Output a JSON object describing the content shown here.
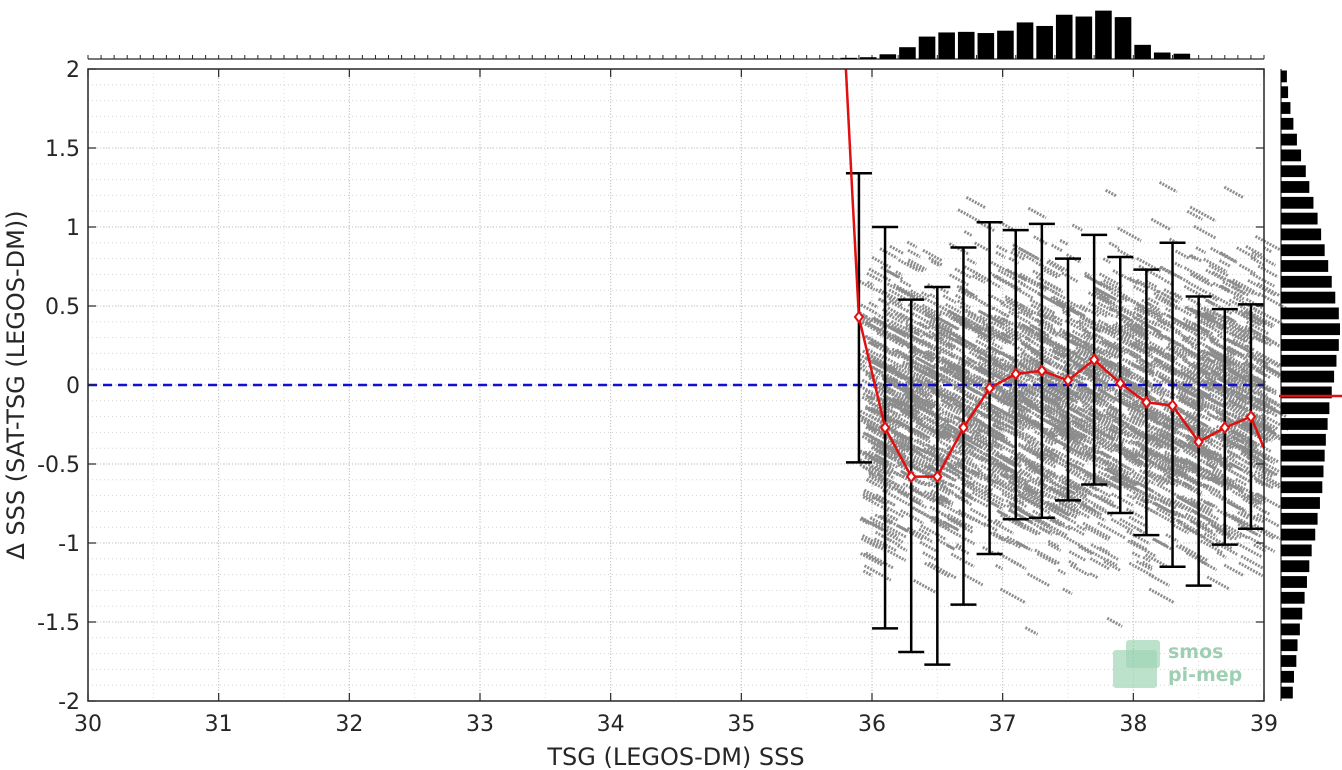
{
  "chart_data": {
    "type": "scatter",
    "title": "",
    "xlabel": "TSG (LEGOS-DM) SSS",
    "ylabel": "Δ SSS (SAT-TSG (LEGOS-DM))",
    "xlim": [
      30,
      39
    ],
    "ylim": [
      -2,
      2
    ],
    "x_ticks": [
      30,
      31,
      32,
      33,
      34,
      35,
      36,
      37,
      38,
      39
    ],
    "y_ticks": [
      -2,
      -1.5,
      -1,
      -0.5,
      0,
      0.5,
      1,
      1.5,
      2
    ],
    "y_tick_labels": [
      "-2",
      "-1.5",
      "-1",
      "-0.5",
      "0",
      "0.5",
      "1",
      "1.5",
      "2"
    ],
    "grid": true,
    "reference_line": {
      "y": 0,
      "style": "dashed",
      "color": "#1010d0"
    },
    "scatter_color": "#8c8c8c",
    "scatter_region": {
      "x_min": 35.9,
      "x_max": 39,
      "center_y": -0.1,
      "spread_y": 0.9
    },
    "binned_mean": {
      "name": "mean",
      "color": "#e01010",
      "x": [
        35.9,
        36.1,
        36.3,
        36.5,
        36.7,
        36.9,
        37.1,
        37.3,
        37.5,
        37.7,
        37.9,
        38.1,
        38.3,
        38.5,
        38.7,
        38.9
      ],
      "y": [
        0.43,
        -0.27,
        -0.58,
        -0.58,
        -0.27,
        -0.02,
        0.07,
        0.09,
        0.03,
        0.16,
        0.01,
        -0.11,
        -0.13,
        -0.36,
        -0.27,
        -0.2
      ],
      "left_extension": [
        [
          35.8,
          2.0
        ],
        [
          35.85,
          1.2
        ],
        [
          35.9,
          0.43
        ]
      ],
      "right_extension": [
        [
          38.9,
          -0.2
        ],
        [
          39.0,
          -0.4
        ]
      ]
    },
    "error_bars": {
      "color": "#000000",
      "x": [
        35.9,
        36.1,
        36.3,
        36.5,
        36.7,
        36.9,
        37.1,
        37.3,
        37.5,
        37.7,
        37.9,
        38.1,
        38.3,
        38.5,
        38.7,
        38.9
      ],
      "low": [
        -0.49,
        -1.54,
        -1.69,
        -1.77,
        -1.39,
        -1.07,
        -0.85,
        -0.84,
        -0.73,
        -0.63,
        -0.81,
        -0.95,
        -1.15,
        -1.27,
        -1.01,
        -0.91
      ],
      "high": [
        1.34,
        1.0,
        0.54,
        0.62,
        0.87,
        1.03,
        0.98,
        1.02,
        0.8,
        0.95,
        0.81,
        0.73,
        0.9,
        0.56,
        0.48,
        0.51
      ]
    },
    "top_histogram": {
      "bin_edges_start": 35.6,
      "bin_width": 0.15,
      "values": [
        0.01,
        0.02,
        0.03,
        0.08,
        0.2,
        0.38,
        0.45,
        0.46,
        0.44,
        0.48,
        0.62,
        0.56,
        0.75,
        0.72,
        0.82,
        0.71,
        0.24,
        0.11,
        0.09
      ]
    },
    "right_histogram": {
      "bin_edges_start": -2,
      "bin_width": 0.1,
      "values": [
        0.2,
        0.22,
        0.26,
        0.28,
        0.32,
        0.36,
        0.4,
        0.44,
        0.48,
        0.52,
        0.58,
        0.62,
        0.66,
        0.7,
        0.72,
        0.74,
        0.76,
        0.79,
        0.82,
        0.86,
        0.9,
        0.94,
        0.98,
        1.0,
        0.98,
        0.92,
        0.86,
        0.8,
        0.74,
        0.68,
        0.62,
        0.55,
        0.48,
        0.42,
        0.34,
        0.27,
        0.21,
        0.16,
        0.12,
        0.1
      ],
      "median_line": {
        "y": -0.07,
        "color": "#e01010"
      }
    },
    "watermark_logo": {
      "line1": "smos",
      "line2": "pi-mep"
    }
  }
}
